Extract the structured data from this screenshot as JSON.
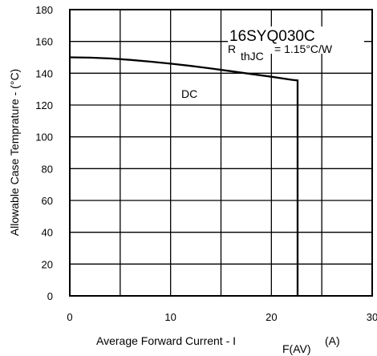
{
  "chart_data": {
    "type": "line",
    "x_ticks": [
      0,
      10,
      20,
      30
    ],
    "y_ticks": [
      0,
      20,
      40,
      60,
      80,
      100,
      120,
      140,
      160,
      180
    ],
    "xlim": [
      0,
      30
    ],
    "ylim": [
      0,
      180
    ],
    "xlabel": {
      "main": "Average Forward Current  - I",
      "subscript": "F(AV)",
      "unit": "(A)"
    },
    "ylabel": "Allowable Case Temprature - (°C)",
    "grid": true,
    "series": [
      {
        "x": [
          0,
          2,
          4,
          6,
          8,
          10,
          12,
          14,
          16,
          18,
          20,
          22,
          22.6
        ],
        "y": [
          150,
          149.8,
          149.3,
          148.4,
          147.3,
          146,
          144.6,
          143,
          141.3,
          139.5,
          137.8,
          135.9,
          135.5
        ],
        "drop_to": 0
      }
    ],
    "annotations": {
      "part_number": "16SYQ030C",
      "r_symbol": "R",
      "r_subscript": "thJC",
      "r_value": "= 1.15°C/W",
      "curve_label": "DC"
    }
  }
}
